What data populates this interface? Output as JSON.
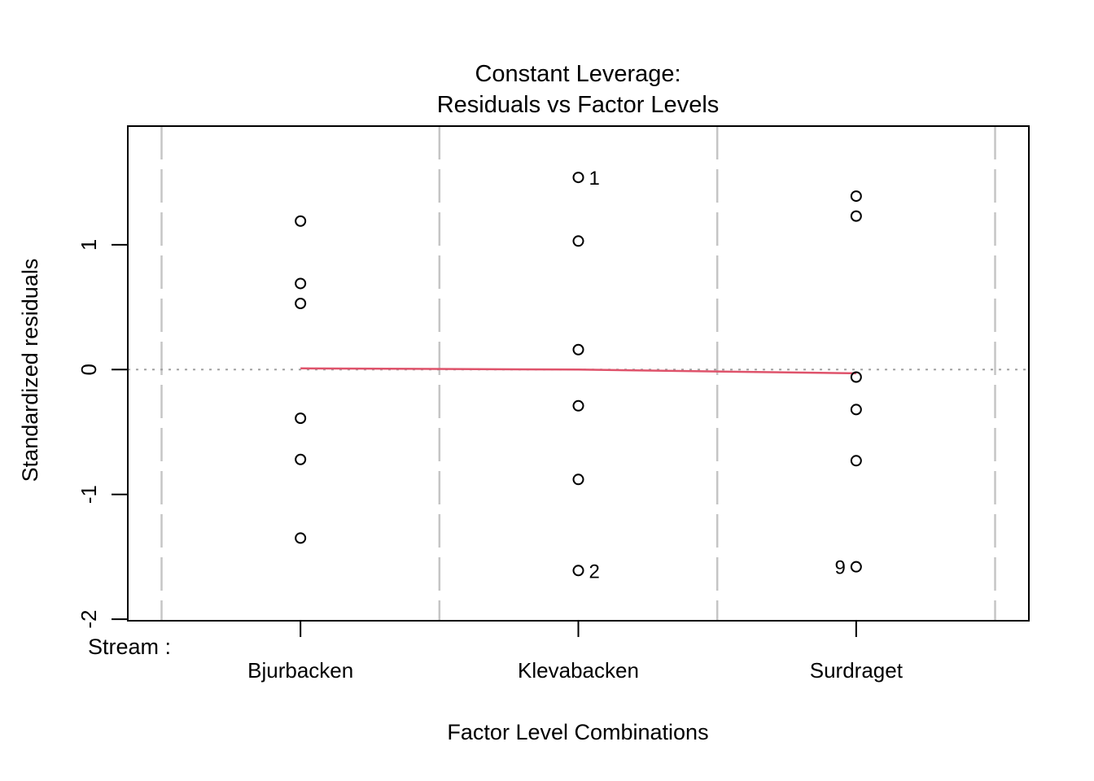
{
  "labels": {
    "title_line1": "Constant Leverage:",
    "title_line2": "Residuals vs Factor Levels",
    "y_axis": "Standardized residuals",
    "x_axis": "Factor Level Combinations",
    "factor": "Stream :"
  },
  "chart_data": {
    "type": "scatter",
    "title": "Constant Leverage: Residuals vs Factor Levels",
    "xlabel": "Factor Level Combinations",
    "ylabel": "Standardized residuals",
    "factor_name": "Stream :",
    "categories": [
      "Bjurbacken",
      "Klevabacken",
      "Surdraget"
    ],
    "series": [
      {
        "name": "Bjurbacken",
        "values": [
          1.19,
          0.69,
          0.53,
          -0.39,
          -0.72,
          -1.35
        ]
      },
      {
        "name": "Klevabacken",
        "values": [
          1.54,
          1.03,
          0.16,
          -0.29,
          -0.88,
          -1.61
        ]
      },
      {
        "name": "Surdraget",
        "values": [
          1.39,
          1.23,
          -0.06,
          -0.32,
          -0.73,
          -1.58
        ]
      }
    ],
    "point_labels": [
      {
        "label": "1",
        "category": "Klevabacken",
        "value": 1.54,
        "side": "right"
      },
      {
        "label": "2",
        "category": "Klevabacken",
        "value": -1.61,
        "side": "right"
      },
      {
        "label": "9",
        "category": "Surdraget",
        "value": -1.58,
        "side": "left"
      }
    ],
    "smoother": {
      "values": [
        0.01,
        0.0,
        -0.03
      ]
    },
    "zero_line": 0,
    "y_ticks": [
      -2,
      -1,
      0,
      1
    ],
    "ylim": [
      -2.02,
      1.95
    ],
    "grid": false,
    "legend": "none",
    "colors": {
      "point": "#000000",
      "boundary_dash": "#c5c5c5",
      "zero_dotted": "#a0a0a0",
      "smoother": "#df536b",
      "axis": "#000000"
    }
  }
}
